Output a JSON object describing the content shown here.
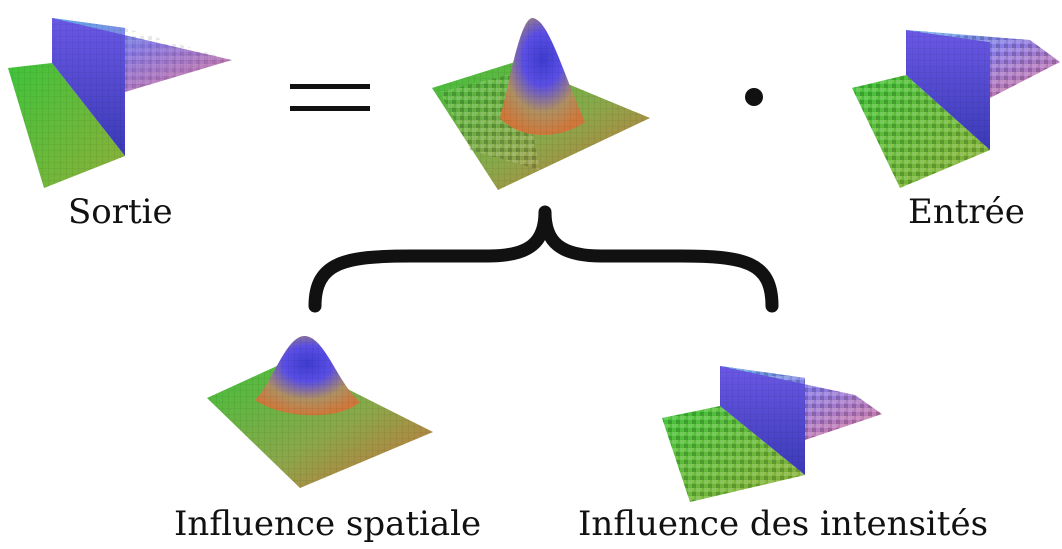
{
  "labels": {
    "output": "Sortie",
    "input": "Entrée",
    "spatial": "Influence spatiale",
    "intensity": "Influence des intensités"
  },
  "colors": {
    "low": "#4cc43a",
    "high_blue": "#4a4ee0",
    "high_purple": "#b05ae0",
    "warm": "#d0783a",
    "ink": "#111111"
  },
  "operators": {
    "equals_symbol": "equals",
    "multiply_symbol": "dot"
  },
  "plots": [
    {
      "id": "output-surface",
      "kind": "step",
      "noise": "low"
    },
    {
      "id": "kernel-surface",
      "kind": "gaussian-masked",
      "noise": "medium"
    },
    {
      "id": "input-surface",
      "kind": "step",
      "noise": "high"
    },
    {
      "id": "spatial-surface",
      "kind": "gaussian",
      "noise": "none"
    },
    {
      "id": "intensity-surface",
      "kind": "step",
      "noise": "high"
    }
  ]
}
